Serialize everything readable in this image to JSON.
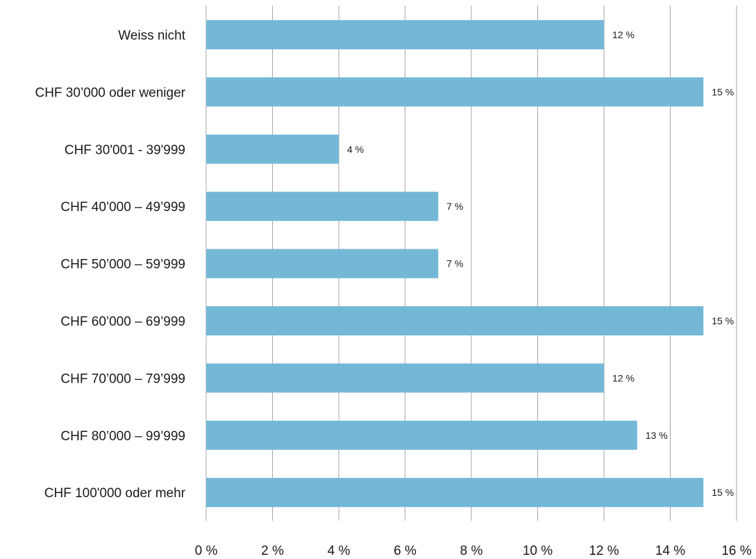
{
  "chart_data": {
    "type": "bar",
    "orientation": "horizontal",
    "categories": [
      "Weiss nicht",
      "CHF 30’000 oder weniger",
      "CHF 30'001 - 39'999",
      "CHF 40’000 – 49’999",
      "CHF 50’000 – 59’999",
      "CHF 60’000 – 69’999",
      "CHF 70’000 – 79’999",
      "CHF 80’000 – 99’999",
      "CHF 100'000 oder mehr"
    ],
    "values": [
      12,
      15,
      4,
      7,
      7,
      15,
      12,
      13,
      15
    ],
    "data_labels": [
      "12 %",
      "15 %",
      "4 %",
      "7 %",
      "7 %",
      "15 %",
      "12 %",
      "13 %",
      "15 %"
    ],
    "xlim": [
      0,
      16
    ],
    "x_ticks": [
      0,
      2,
      4,
      6,
      8,
      10,
      12,
      14,
      16
    ],
    "x_tick_labels": [
      "0 %",
      "2 %",
      "4 %",
      "6 %",
      "8 %",
      "10 %",
      "12 %",
      "14 %",
      "16 %"
    ],
    "grid": "vertical",
    "legend": "none",
    "colors": {
      "bar": "#74b8d7",
      "grid": "#a6a6a6",
      "text": "#1a1a1a"
    }
  }
}
